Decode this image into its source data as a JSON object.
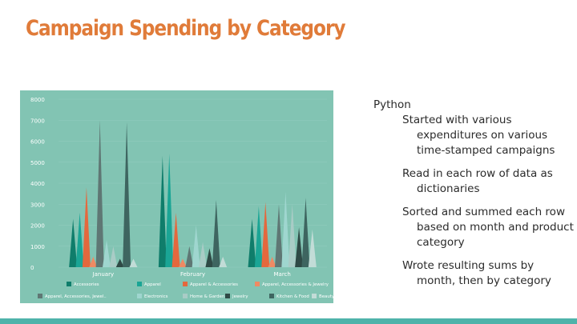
{
  "slide": {
    "title": "Campaign Spending by Category",
    "notes": {
      "heading": "Python",
      "items": [
        "Started with various expenditures on various time-stamped campaigns",
        "Read in each row of data as dictionaries",
        "Sorted and summed each row based on month and product category",
        "Wrote resulting sums by month, then by category"
      ]
    }
  },
  "colors": {
    "title": "#e07b39",
    "chart_bg": "#82c4b3",
    "bottom_bar": "#4fb3aa"
  },
  "chart_data": {
    "type": "bar",
    "categories": [
      "January",
      "February",
      "March"
    ],
    "ylim": [
      0,
      8000
    ],
    "yticks": [
      0,
      1000,
      2000,
      3000,
      4000,
      5000,
      6000,
      7000,
      8000
    ],
    "legend_placement": "bottom",
    "series": [
      {
        "name": "Accessories",
        "color": "#0f7d6b",
        "values": [
          2300,
          5300,
          2300
        ]
      },
      {
        "name": "Apparel",
        "color": "#1aa595",
        "values": [
          2600,
          5400,
          2900
        ]
      },
      {
        "name": "Apparel & Accessories",
        "color": "#e4683d",
        "values": [
          3800,
          2600,
          3100
        ]
      },
      {
        "name": "Apparel, Accessories & Jewelry",
        "color": "#ef8a63",
        "values": [
          500,
          400,
          500
        ]
      },
      {
        "name": "Apparel, Accessories, Jewel..",
        "color": "#5f7774",
        "values": [
          7000,
          1000,
          3000
        ]
      },
      {
        "name": "Electronics",
        "color": "#9fd6cf",
        "values": [
          1300,
          2000,
          3600
        ]
      },
      {
        "name": "Home & Garden",
        "color": "#a9ccc6",
        "values": [
          1000,
          1200,
          3000
        ]
      },
      {
        "name": "Jewelry",
        "color": "#2f4a46",
        "values": [
          400,
          900,
          1900
        ]
      },
      {
        "name": "Kitchen & Food",
        "color": "#3e6560",
        "values": [
          6900,
          3200,
          3300
        ]
      },
      {
        "name": "Beauty",
        "color": "#c2dcd7",
        "values": [
          400,
          500,
          1800
        ]
      }
    ]
  }
}
